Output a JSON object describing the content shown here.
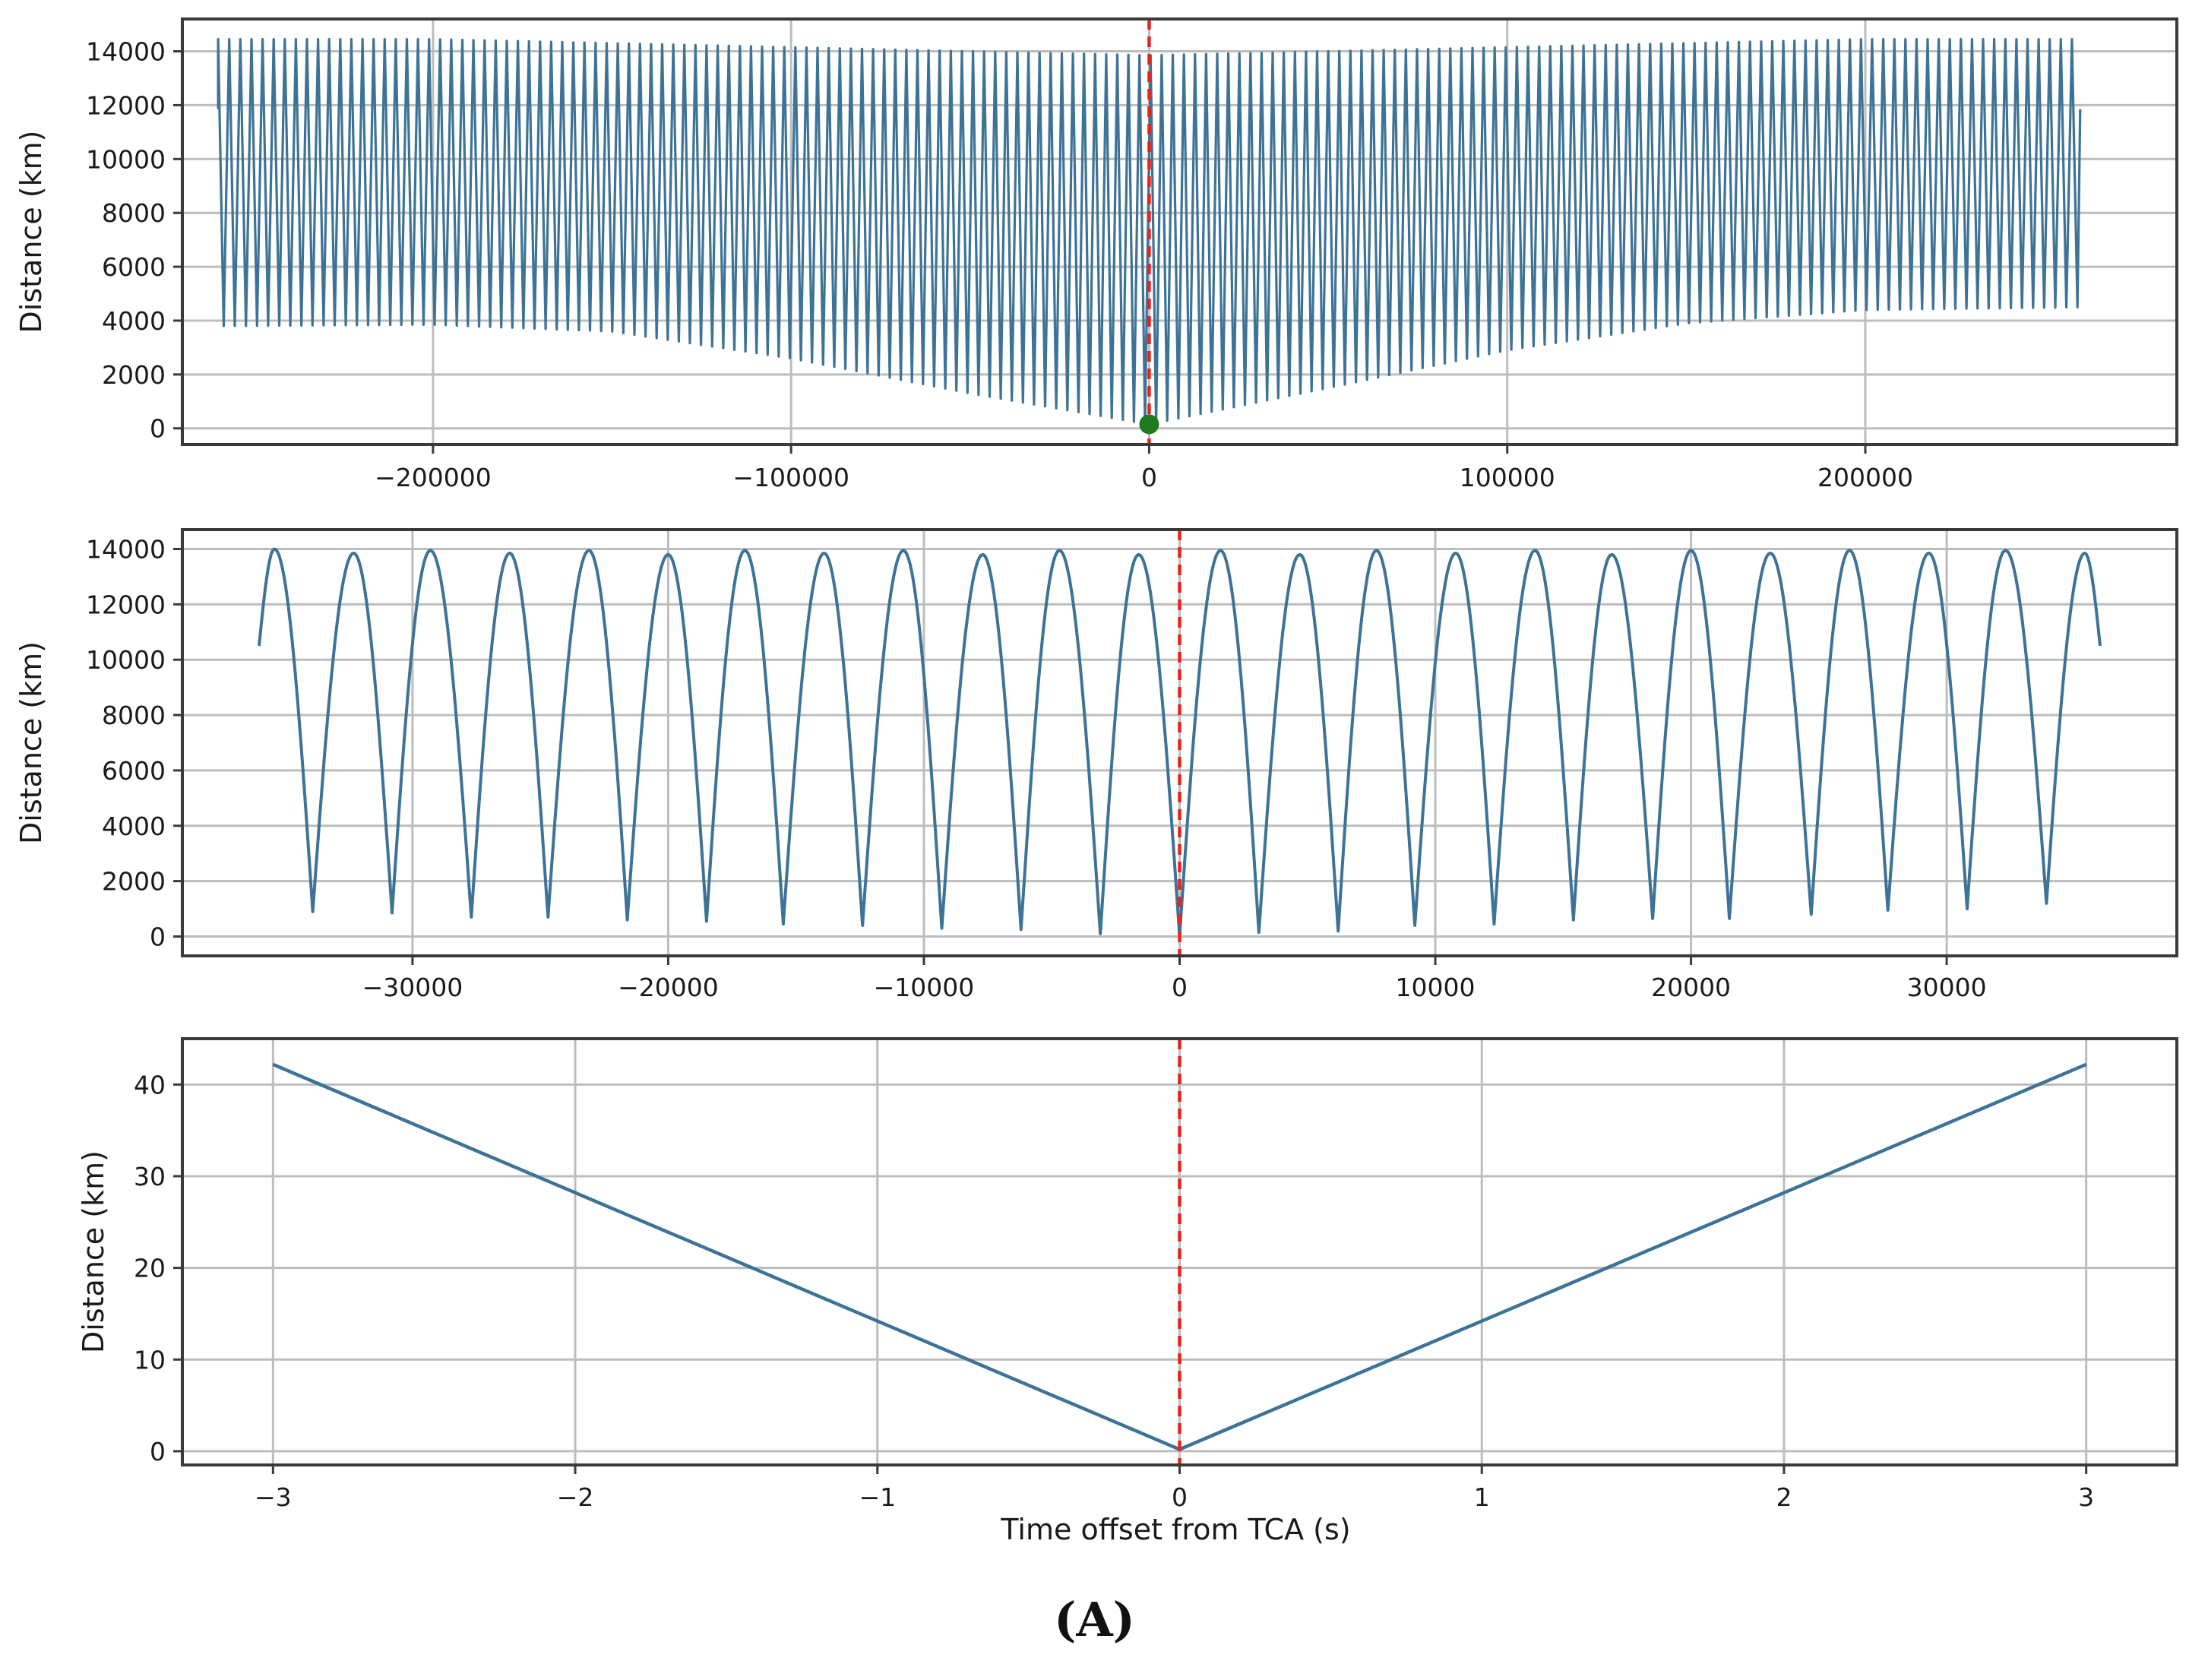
{
  "caption": "(A)",
  "colors": {
    "series": "#3d7396",
    "tca_marker": "#e8231d",
    "closest_point": "#1e7a1e"
  },
  "chart_data": [
    {
      "type": "line",
      "title": "",
      "xlabel": "",
      "ylabel": "Distance (km)",
      "xlim": [
        -270000,
        287000
      ],
      "ylim": [
        -600,
        15200
      ],
      "xticks": [
        -200000,
        -100000,
        0,
        100000,
        200000
      ],
      "yticks": [
        0,
        2000,
        4000,
        6000,
        8000,
        10000,
        12000,
        14000
      ],
      "grid": true,
      "vertical_marker": {
        "x": 0,
        "style": "dashed"
      },
      "closest_point": {
        "x": 0,
        "y": 150
      },
      "series": [
        {
          "period_s": 3100,
          "x_range": [
            -260000,
            260000
          ],
          "apogee": [
            [
              -260000,
              14450
            ],
            [
              -200000,
              14450
            ],
            [
              -100000,
              14150
            ],
            [
              0,
              13850
            ],
            [
              100000,
              14150
            ],
            [
              200000,
              14450
            ],
            [
              260000,
              14450
            ]
          ],
          "perigee": [
            [
              -260000,
              3800
            ],
            [
              -200000,
              3850
            ],
            [
              -150000,
              3600
            ],
            [
              -100000,
              2600
            ],
            [
              -50000,
              1300
            ],
            [
              0,
              150
            ],
            [
              50000,
              1500
            ],
            [
              100000,
              2900
            ],
            [
              150000,
              3900
            ],
            [
              200000,
              4400
            ],
            [
              260000,
              4500
            ]
          ]
        }
      ]
    },
    {
      "type": "line",
      "title": "",
      "xlabel": "",
      "ylabel": "Distance (km)",
      "xlim": [
        -39000,
        39000
      ],
      "ylim": [
        -700,
        14700
      ],
      "xticks": [
        -30000,
        -20000,
        -10000,
        0,
        10000,
        20000,
        30000
      ],
      "yticks": [
        0,
        2000,
        4000,
        6000,
        8000,
        10000,
        12000,
        14000
      ],
      "grid": true,
      "vertical_marker": {
        "x": 0,
        "style": "dashed"
      },
      "series": [
        {
          "x_range": [
            -36000,
            36000
          ],
          "minima": [
            [
              -33900,
              900
            ],
            [
              -30800,
              850
            ],
            [
              -27700,
              700
            ],
            [
              -24700,
              700
            ],
            [
              -21600,
              600
            ],
            [
              -18500,
              550
            ],
            [
              -15500,
              450
            ],
            [
              -12400,
              400
            ],
            [
              -9300,
              300
            ],
            [
              -6200,
              250
            ],
            [
              -3100,
              100
            ],
            [
              0,
              0
            ],
            [
              3100,
              150
            ],
            [
              6200,
              200
            ],
            [
              9200,
              400
            ],
            [
              12300,
              450
            ],
            [
              15400,
              600
            ],
            [
              18500,
              650
            ],
            [
              21500,
              650
            ],
            [
              24700,
              800
            ],
            [
              27700,
              950
            ],
            [
              30800,
              1000
            ],
            [
              33900,
              1200
            ]
          ],
          "maxima": [
            [
              -35400,
              14000
            ],
            [
              -32300,
              13850
            ],
            [
              -29300,
              13950
            ],
            [
              -26200,
              13850
            ],
            [
              -23100,
              13950
            ],
            [
              -20000,
              13800
            ],
            [
              -17000,
              13950
            ],
            [
              -13900,
              13850
            ],
            [
              -10800,
              13950
            ],
            [
              -7700,
              13800
            ],
            [
              -4700,
              13950
            ],
            [
              -1600,
              13800
            ],
            [
              1600,
              13950
            ],
            [
              4700,
              13800
            ],
            [
              7700,
              13950
            ],
            [
              10800,
              13850
            ],
            [
              13900,
              13950
            ],
            [
              16900,
              13800
            ],
            [
              20000,
              13950
            ],
            [
              23100,
              13850
            ],
            [
              26200,
              13950
            ],
            [
              29300,
              13850
            ],
            [
              32300,
              13950
            ],
            [
              35400,
              13850
            ]
          ],
          "endpoints": [
            [
              -36000,
              10500
            ],
            [
              36000,
              10500
            ]
          ]
        }
      ]
    },
    {
      "type": "line",
      "title": "",
      "xlabel": "Time offset from TCA (s)",
      "ylabel": "Distance (km)",
      "xlim": [
        -3.3,
        3.3
      ],
      "ylim": [
        -1.5,
        45
      ],
      "xticks": [
        -3,
        -2,
        -1,
        0,
        1,
        2,
        3
      ],
      "yticks": [
        0,
        10,
        20,
        30,
        40
      ],
      "grid": true,
      "vertical_marker": {
        "x": 0,
        "style": "dashed"
      },
      "series": [
        {
          "x": [
            -3,
            0,
            3
          ],
          "y": [
            42.2,
            0.2,
            42.2
          ]
        }
      ]
    }
  ]
}
